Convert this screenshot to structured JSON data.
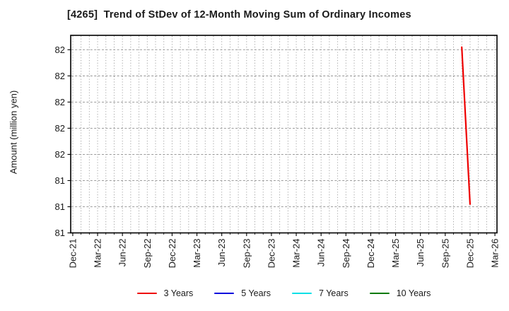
{
  "title": "[4265]  Trend of StDev of 12-Month Moving Sum of Ordinary Incomes",
  "chart_data": {
    "type": "line",
    "title": "[4265]  Trend of StDev of 12-Month Moving Sum of Ordinary Incomes",
    "xlabel": "",
    "ylabel": "Amount (million yen)",
    "x_tick_labels": [
      "Dec-21",
      "Mar-22",
      "Jun-22",
      "Sep-22",
      "Dec-22",
      "Mar-23",
      "Jun-23",
      "Sep-23",
      "Dec-23",
      "Mar-24",
      "Jun-24",
      "Sep-24",
      "Dec-24",
      "Mar-25",
      "Jun-25",
      "Sep-25",
      "Dec-25",
      "Mar-26"
    ],
    "months_per_major_tick": 3,
    "total_months": 52,
    "xlim_months": [
      -0.25,
      51.25
    ],
    "ylim": [
      81.2,
      81.955
    ],
    "yticks": [
      {
        "value": 81.9,
        "label": "82"
      },
      {
        "value": 81.8,
        "label": "82"
      },
      {
        "value": 81.7,
        "label": "82"
      },
      {
        "value": 81.6,
        "label": "82"
      },
      {
        "value": 81.5,
        "label": "82"
      },
      {
        "value": 81.4,
        "label": "81"
      },
      {
        "value": 81.3,
        "label": "81"
      },
      {
        "value": 81.2,
        "label": "81"
      }
    ],
    "grid": {
      "horizontal": true,
      "vertical_minor_monthly": true
    },
    "legend_position": "bottom-center",
    "series": [
      {
        "name": "3 Years",
        "color": "#ee0000",
        "points": [
          {
            "month": "Nov-25",
            "month_index": 47,
            "value": 81.91
          },
          {
            "month": "Dec-25",
            "month_index": 48,
            "value": 81.31
          }
        ]
      },
      {
        "name": "5 Years",
        "color": "#0000dd",
        "points": []
      },
      {
        "name": "7 Years",
        "color": "#00dfe6",
        "points": []
      },
      {
        "name": "10 Years",
        "color": "#007a00",
        "points": []
      }
    ],
    "colors": {
      "spine": "#000000",
      "grid_h": "#8f8f8f",
      "grid_v": "#9a9a9a",
      "tick_text": "#1a1a1a"
    }
  }
}
